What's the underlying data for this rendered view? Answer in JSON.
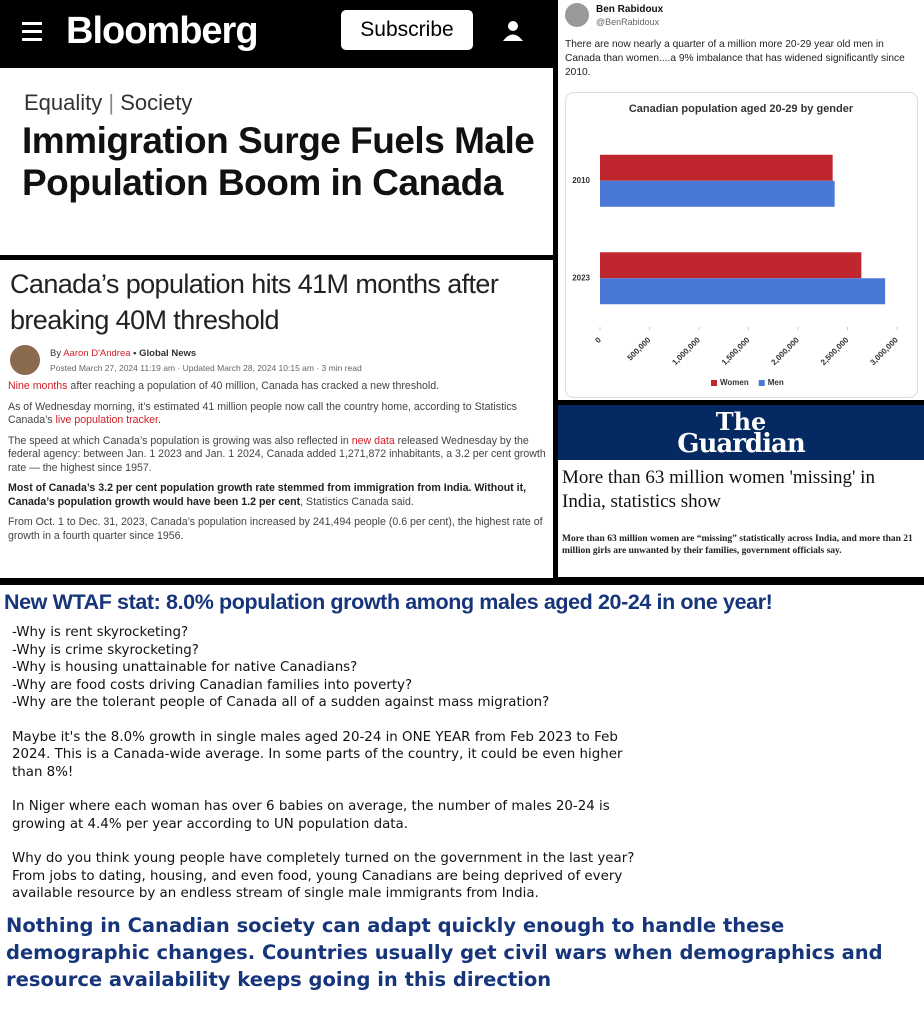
{
  "bloomberg": {
    "brand": "Bloomberg",
    "subscribe": "Subscribe",
    "section": "Equality",
    "subsection": "Society",
    "headline": "Immigration Surge Fuels Male Population Boom in Canada"
  },
  "globalnews": {
    "headline": "Canada’s population hits 41M months after breaking 40M threshold",
    "by": "By",
    "author": "Aaron D'Andrea",
    "outlet": "• Global News",
    "dateline": "Posted March 27, 2024 11:19 am · Updated March 28, 2024 10:15 am · 3 min read",
    "paragraphs": [
      [
        "Nine months",
        " after reaching a population of 40 million, Canada has cracked a new threshold."
      ],
      [
        "As of Wednesday morning, it’s estimated 41 million people now call the country home, according to Statistics Canada’s ",
        "live population tracker",
        "."
      ],
      [
        "The speed at which Canada’s population is growing was also reflected in ",
        "new data",
        " released Wednesday by the federal agency: between Jan. 1 2023 and Jan. 1 2024, Canada added 1,271,872 inhabitants, a 3.2 per cent growth rate — the highest since 1957."
      ],
      [
        "Most of Canada’s 3.2 per cent population growth rate stemmed from immigration from India. Without it, Canada’s population growth would have been 1.2 per cent",
        ", Statistics Canada said."
      ],
      [
        "From Oct. 1 to Dec. 31, 2023, Canada’s population increased by 241,494 people (0.6 per cent), the highest rate of growth in a fourth quarter since 1956."
      ]
    ]
  },
  "tweet": {
    "name": "Ben Rabidoux",
    "handle": "@BenRabidoux",
    "text": "There are now nearly a quarter of a million more 20-29 year old men in Canada than women....a 9% imbalance that has widened significantly since 2010."
  },
  "chart_data": {
    "type": "bar",
    "orientation": "horizontal",
    "title": "Canadian population aged 20-29 by gender",
    "categories": [
      "2010",
      "2023"
    ],
    "series": [
      {
        "name": "Women",
        "color": "#c0262d",
        "values": [
          2350000,
          2640000
        ]
      },
      {
        "name": "Men",
        "color": "#4a78d6",
        "values": [
          2370000,
          2880000
        ]
      }
    ],
    "xlim": [
      0,
      3000000
    ],
    "xticks": [
      0,
      {
        "value": 500000,
        "label": "500,000"
      },
      {
        "value": 1000000,
        "label": "1,000,000"
      },
      {
        "value": 1500000,
        "label": "1,500,000"
      },
      {
        "value": 2000000,
        "label": "2,000,000"
      },
      {
        "value": 2500000,
        "label": "2,500,000"
      },
      {
        "value": 3000000,
        "label": "3,000,000"
      }
    ],
    "grid": false,
    "legend": "bottom"
  },
  "guardian": {
    "logo_top": "The",
    "logo_bottom": "Guardian",
    "headline": "More than 63 million women 'missing' in India, statistics show",
    "standfirst": "More than 63 million women are “missing” statistically across India, and more than 21 million girls are unwanted by their families, government officials say."
  },
  "post": {
    "title": "New WTAF stat: 8.0% population growth among males aged 20-24 in one year!",
    "questions": [
      "-Why is rent skyrocketing?",
      "-Why is crime skyrocketing?",
      "-Why is housing unattainable for native Canadians?",
      "-Why are food costs driving Canadian families into poverty?",
      "-Why are the tolerant people of Canada all of a sudden against mass migration?"
    ],
    "paragraphs": [
      "Maybe it's the 8.0% growth in single males aged 20-24 in ONE YEAR from Feb 2023 to Feb 2024. This is a Canada-wide average. In some parts of the country, it could be even higher than 8%!",
      "In Niger where each woman has over 6 babies on average, the number of males 20-24 is growing at 4.4% per year according to UN population data.",
      "Why do you think young people have completely turned on the government in the last year? From jobs to dating, housing, and even food, young Canadians are being deprived of every available resource by an endless stream of single male immigrants from India."
    ],
    "conclusion": "Nothing in Canadian society can adapt quickly enough to handle these demographic changes. Countries usually get civil wars when demographics and resource availability keeps going in this direction"
  }
}
